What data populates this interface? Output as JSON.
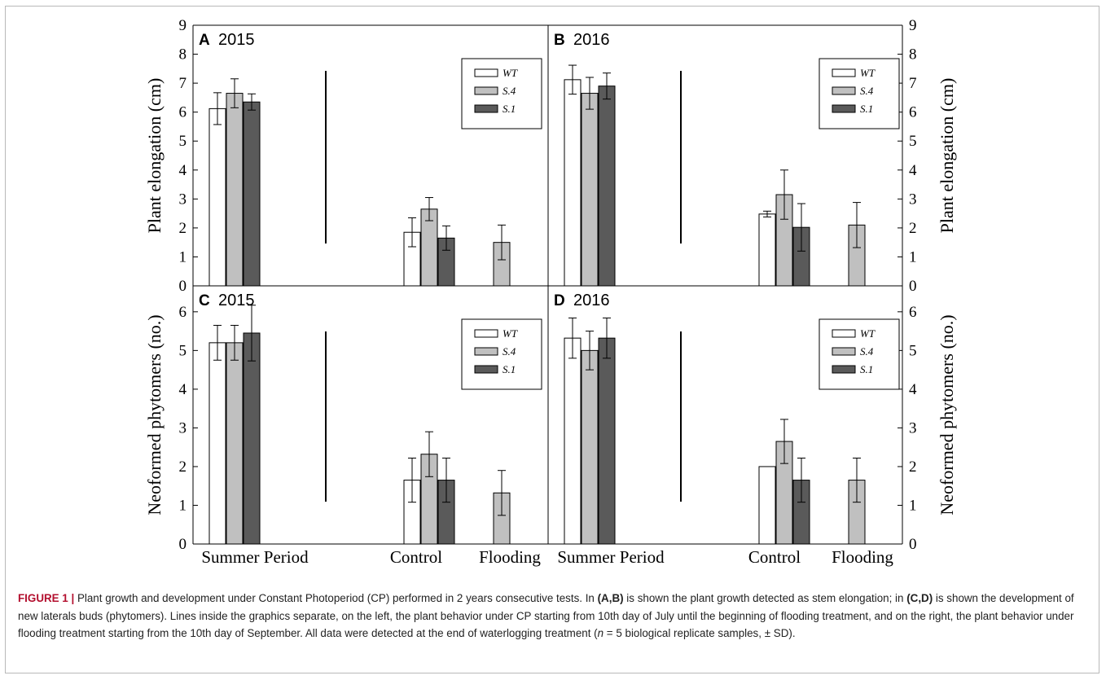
{
  "chart_data": {
    "type": "bar",
    "categories": [
      "Summer Period",
      "Control",
      "Flooding"
    ],
    "legend": [
      "WT",
      "S.4",
      "S.1"
    ],
    "series_colors": {
      "WT": "#ffffff",
      "S.4": "#c0c0c0",
      "S.1": "#5a5a5a"
    },
    "legend_placement": "top-right",
    "grid": false,
    "panels": [
      {
        "id": "A",
        "year": "2015",
        "ylabel": "Plant elongation (cm)",
        "ylim": [
          0,
          9
        ],
        "yticks": [
          "0",
          "1",
          "2",
          "3",
          "4",
          "5",
          "6",
          "7",
          "8",
          "9"
        ],
        "series": [
          {
            "name": "WT",
            "values": [
              6.12,
              1.85,
              null
            ],
            "errors": [
              0.55,
              0.5,
              null
            ]
          },
          {
            "name": "S.4",
            "values": [
              6.65,
              2.65,
              1.5
            ],
            "errors": [
              0.5,
              0.4,
              0.6
            ]
          },
          {
            "name": "S.1",
            "values": [
              6.35,
              1.65,
              null
            ],
            "errors": [
              0.28,
              0.42,
              null
            ]
          }
        ]
      },
      {
        "id": "B",
        "year": "2016",
        "ylabel": "Plant elongation (cm)",
        "ylim": [
          0,
          9
        ],
        "yticks": [
          "0",
          "1",
          "2",
          "3",
          "4",
          "5",
          "6",
          "7",
          "8",
          "9"
        ],
        "series": [
          {
            "name": "WT",
            "values": [
              7.12,
              2.48,
              null
            ],
            "errors": [
              0.5,
              0.1,
              null
            ]
          },
          {
            "name": "S.4",
            "values": [
              6.65,
              3.15,
              2.1
            ],
            "errors": [
              0.55,
              0.85,
              0.78
            ]
          },
          {
            "name": "S.1",
            "values": [
              6.9,
              2.02,
              null
            ],
            "errors": [
              0.45,
              0.82,
              null
            ]
          }
        ]
      },
      {
        "id": "C",
        "year": "2015",
        "ylabel": "Neoformed phytomers (no.)",
        "ylim": [
          0,
          6.67
        ],
        "yticks": [
          "0",
          "1",
          "2",
          "3",
          "4",
          "5",
          "6"
        ],
        "series": [
          {
            "name": "WT",
            "values": [
              5.2,
              1.65,
              null
            ],
            "errors": [
              0.45,
              0.57,
              null
            ]
          },
          {
            "name": "S.4",
            "values": [
              5.2,
              2.32,
              1.32
            ],
            "errors": [
              0.45,
              0.58,
              0.58
            ]
          },
          {
            "name": "S.1",
            "values": [
              5.45,
              1.65,
              null
            ],
            "errors": [
              0.72,
              0.57,
              null
            ]
          }
        ]
      },
      {
        "id": "D",
        "year": "2016",
        "ylabel": "Neoformed phytomers (no.)",
        "ylim": [
          0,
          6.67
        ],
        "yticks": [
          "0",
          "1",
          "2",
          "3",
          "4",
          "5",
          "6"
        ],
        "series": [
          {
            "name": "WT",
            "values": [
              5.32,
              2.0,
              null
            ],
            "errors": [
              0.52,
              0.0,
              null
            ]
          },
          {
            "name": "S.4",
            "values": [
              5.0,
              2.65,
              1.65
            ],
            "errors": [
              0.5,
              0.57,
              0.57
            ]
          },
          {
            "name": "S.1",
            "values": [
              5.32,
              1.65,
              null
            ],
            "errors": [
              0.52,
              0.57,
              null
            ]
          }
        ]
      }
    ]
  },
  "caption": {
    "label": "FIGURE 1 |",
    "part1": " Plant growth and development under Constant Photoperiod (CP) performed in 2 years consecutive tests. In ",
    "ref1": "(A,B)",
    "part2": " is shown the plant growth detected as stem elongation; in ",
    "ref2": "(C,D)",
    "part3": " is shown the development of new laterals buds (phytomers). Lines inside the graphics separate, on the left, the plant behavior under CP starting from 10th day of July until the beginning of flooding treatment, and on the right, the plant behavior under flooding treatment starting from the 10th day of September. All data were detected at the end of waterlogging treatment (",
    "n_symbol": "n",
    "part4": " = 5 biological replicate samples, ± SD)."
  }
}
